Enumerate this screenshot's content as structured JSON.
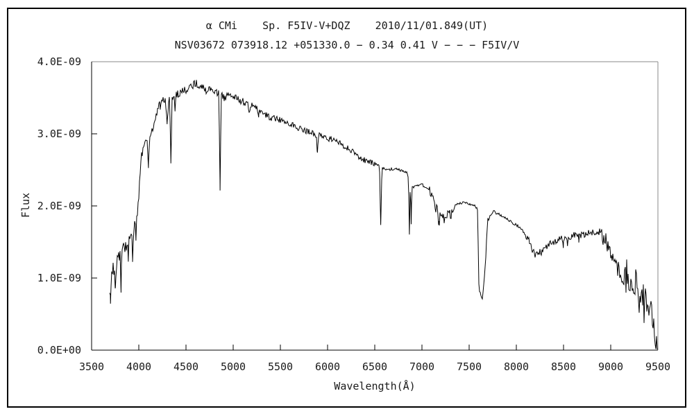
{
  "chart_data": {
    "type": "line",
    "title": "α CMi    Sp. F5IV-V+DQZ    2010/11/01.849(UT)",
    "subtitle": "NSV03672 073918.12 +051330.0 − 0.34 0.41 V − − − F5IV/V",
    "xlabel": "Wavelength(Å)",
    "ylabel": "Flux",
    "xlim": [
      3500,
      9500
    ],
    "ylim": [
      0,
      4e-09
    ],
    "x_ticks": [
      3500,
      4000,
      4500,
      5000,
      5500,
      6000,
      6500,
      7000,
      7500,
      8000,
      8500,
      9000,
      9500
    ],
    "y_ticks": [
      {
        "value": 0,
        "label": "0.0E+00"
      },
      {
        "value": 1e-09,
        "label": "1.0E-09"
      },
      {
        "value": 2e-09,
        "label": "2.0E-09"
      },
      {
        "value": 3e-09,
        "label": "3.0E-09"
      },
      {
        "value": 4e-09,
        "label": "4.0E-09"
      }
    ],
    "grid": false,
    "legend": null,
    "line_color": "#000000",
    "box_colors": {
      "left": "#000000",
      "bottom": "#000000",
      "top": "#888888",
      "right": "#888888"
    },
    "series": [
      {
        "name": "spectrum",
        "flux_scale": 1e-09,
        "wavelength_start": 3690,
        "wavelength_end": 9500,
        "envelope_points": [
          [
            3690,
            0.9
          ],
          [
            3730,
            1.15
          ],
          [
            3780,
            1.28
          ],
          [
            3840,
            1.4
          ],
          [
            3900,
            1.52
          ],
          [
            3950,
            1.72
          ],
          [
            3990,
            1.95
          ],
          [
            4015,
            2.45
          ],
          [
            4040,
            2.82
          ],
          [
            4100,
            2.92
          ],
          [
            4150,
            3.08
          ],
          [
            4220,
            3.45
          ],
          [
            4300,
            3.5
          ],
          [
            4380,
            3.52
          ],
          [
            4450,
            3.58
          ],
          [
            4520,
            3.63
          ],
          [
            4600,
            3.7
          ],
          [
            4660,
            3.67
          ],
          [
            4720,
            3.6
          ],
          [
            4780,
            3.62
          ],
          [
            4830,
            3.57
          ],
          [
            4900,
            3.5
          ],
          [
            4960,
            3.54
          ],
          [
            5050,
            3.48
          ],
          [
            5150,
            3.42
          ],
          [
            5250,
            3.35
          ],
          [
            5400,
            3.22
          ],
          [
            5550,
            3.18
          ],
          [
            5700,
            3.08
          ],
          [
            5850,
            3.0
          ],
          [
            5950,
            2.96
          ],
          [
            6100,
            2.9
          ],
          [
            6250,
            2.76
          ],
          [
            6400,
            2.63
          ],
          [
            6520,
            2.57
          ],
          [
            6620,
            2.5
          ],
          [
            6720,
            2.52
          ],
          [
            6840,
            2.46
          ],
          [
            6900,
            2.25
          ],
          [
            7000,
            2.3
          ],
          [
            7080,
            2.2
          ],
          [
            7150,
            1.95
          ],
          [
            7220,
            1.8
          ],
          [
            7300,
            1.88
          ],
          [
            7360,
            2.02
          ],
          [
            7450,
            2.05
          ],
          [
            7560,
            2.0
          ],
          [
            7590,
            1.95
          ],
          [
            7605,
            0.8
          ],
          [
            7640,
            0.72
          ],
          [
            7668,
            1.1
          ],
          [
            7695,
            1.8
          ],
          [
            7760,
            1.92
          ],
          [
            7850,
            1.86
          ],
          [
            7950,
            1.78
          ],
          [
            8020,
            1.72
          ],
          [
            8110,
            1.58
          ],
          [
            8200,
            1.31
          ],
          [
            8280,
            1.38
          ],
          [
            8350,
            1.46
          ],
          [
            8450,
            1.54
          ],
          [
            8560,
            1.58
          ],
          [
            8680,
            1.6
          ],
          [
            8800,
            1.63
          ],
          [
            8880,
            1.64
          ],
          [
            8950,
            1.52
          ],
          [
            9000,
            1.32
          ],
          [
            9060,
            1.15
          ],
          [
            9120,
            1.05
          ],
          [
            9180,
            0.98
          ],
          [
            9240,
            0.9
          ],
          [
            9300,
            0.78
          ],
          [
            9360,
            0.62
          ],
          [
            9420,
            0.45
          ],
          [
            9470,
            0.25
          ],
          [
            9500,
            0.08
          ]
        ],
        "absorption_features": [
          {
            "center": 3700,
            "half_width": 8,
            "depth": 0.35
          },
          {
            "center": 3752,
            "half_width": 8,
            "depth": 0.45
          },
          {
            "center": 3812,
            "half_width": 9,
            "depth": 0.5
          },
          {
            "center": 3889,
            "half_width": 8,
            "depth": 0.35
          },
          {
            "center": 3934,
            "half_width": 10,
            "depth": 0.4
          },
          {
            "center": 3970,
            "half_width": 10,
            "depth": 0.38
          },
          {
            "center": 4102,
            "half_width": 13,
            "depth": 0.4
          },
          {
            "center": 4227,
            "half_width": 7,
            "depth": 0.15
          },
          {
            "center": 4300,
            "half_width": 20,
            "depth": 0.38
          },
          {
            "center": 4340,
            "half_width": 13,
            "depth": 0.9
          },
          {
            "center": 4384,
            "half_width": 7,
            "depth": 0.2
          },
          {
            "center": 4861,
            "half_width": 13,
            "depth": 1.28
          },
          {
            "center": 5172,
            "half_width": 12,
            "depth": 0.15
          },
          {
            "center": 5270,
            "half_width": 9,
            "depth": 0.1
          },
          {
            "center": 5893,
            "half_width": 11,
            "depth": 0.28
          },
          {
            "center": 6563,
            "half_width": 13,
            "depth": 0.82
          },
          {
            "center": 6867,
            "half_width": 10,
            "depth": 0.75
          },
          {
            "center": 6886,
            "half_width": 7,
            "depth": 0.55
          },
          {
            "center": 7180,
            "half_width": 12,
            "depth": 0.12
          },
          {
            "center": 8498,
            "half_width": 7,
            "depth": 0.1
          },
          {
            "center": 8542,
            "half_width": 8,
            "depth": 0.12
          },
          {
            "center": 8662,
            "half_width": 8,
            "depth": 0.1
          }
        ],
        "noise_bands": [
          [
            3690,
            3900,
            0.13
          ],
          [
            3900,
            4050,
            0.09
          ],
          [
            4050,
            4400,
            0.05
          ],
          [
            4400,
            5200,
            0.055
          ],
          [
            5200,
            6500,
            0.042
          ],
          [
            6500,
            7080,
            0.018
          ],
          [
            7080,
            7350,
            0.08
          ],
          [
            7350,
            7580,
            0.015
          ],
          [
            7580,
            7700,
            0.05
          ],
          [
            7700,
            8100,
            0.022
          ],
          [
            8100,
            8900,
            0.05
          ],
          [
            8900,
            9150,
            0.12
          ],
          [
            9150,
            9500,
            0.28
          ]
        ]
      }
    ]
  }
}
